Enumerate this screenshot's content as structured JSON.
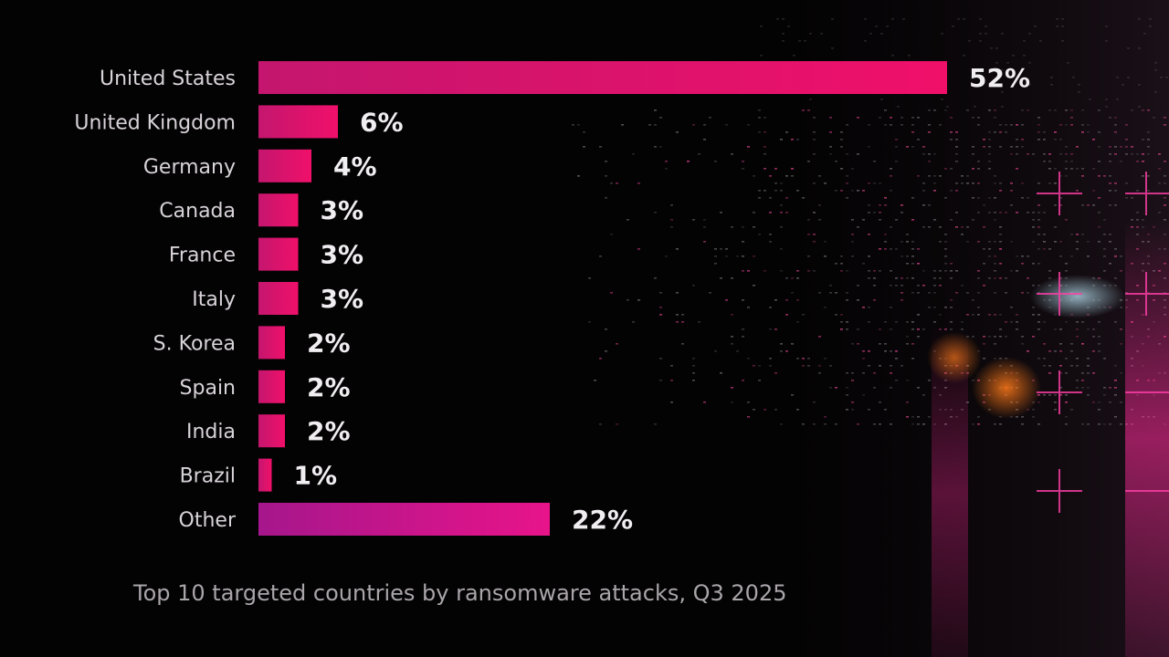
{
  "caption": "Top 10 targeted countries by ransomware attacks, Q3 2025",
  "colors": {
    "background": "#040304",
    "bar_gradient_start": "#c4166e",
    "bar_gradient_end": "#f0106a",
    "other_gradient_start": "#a6168c",
    "other_gradient_end": "#e8148a",
    "label_text": "#d8d3d8",
    "value_text": "#f1eef1"
  },
  "chart_data": {
    "type": "bar",
    "orientation": "horizontal",
    "categories": [
      "United States",
      "United Kingdom",
      "Germany",
      "Canada",
      "France",
      "Italy",
      "S. Korea",
      "Spain",
      "India",
      "Brazil",
      "Other"
    ],
    "values": [
      52,
      6,
      4,
      3,
      3,
      3,
      2,
      2,
      2,
      1,
      22
    ],
    "value_labels": [
      "52%",
      "6%",
      "4%",
      "3%",
      "3%",
      "3%",
      "2%",
      "2%",
      "2%",
      "1%",
      "22%"
    ],
    "title": "",
    "xlabel": "",
    "ylabel": "",
    "xlim": [
      0,
      52
    ],
    "grid": false,
    "legend": "none"
  }
}
